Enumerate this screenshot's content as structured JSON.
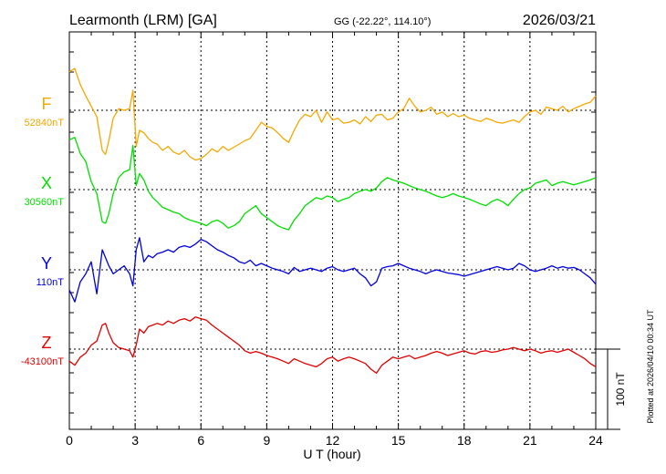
{
  "header": {
    "station": "Learmonth (LRM)  [GA]",
    "coords": "GG (-22.22°, 114.10°)",
    "date": "2026/03/21"
  },
  "footer": {
    "plotted": "Plotted at 2026/04/10 00:34 UT"
  },
  "chart_data": {
    "type": "line",
    "title": "Learmonth (LRM)  [GA]",
    "xlabel": "U T (hour)",
    "xlim": [
      0,
      24
    ],
    "xticks": [
      0,
      3,
      6,
      9,
      12,
      15,
      18,
      21,
      24
    ],
    "grid": true,
    "scale_bar": "100 nT",
    "series": [
      {
        "name": "F",
        "baseline": "52840nT",
        "color": "#f5a800",
        "offset_nt": -20,
        "x": [
          0,
          0.25,
          0.5,
          0.75,
          1,
          1.25,
          1.5,
          1.65,
          1.8,
          2,
          2.25,
          2.5,
          2.75,
          2.9,
          3.05,
          3.2,
          3.4,
          3.6,
          3.8,
          4,
          4.25,
          4.5,
          4.75,
          5,
          5.25,
          5.5,
          5.75,
          6,
          6.25,
          6.5,
          6.75,
          7,
          7.25,
          7.5,
          7.75,
          8,
          8.25,
          8.5,
          8.75,
          9,
          9.25,
          9.5,
          9.75,
          10,
          10.25,
          10.5,
          10.75,
          11,
          11.25,
          11.5,
          11.75,
          12,
          12.25,
          12.5,
          12.75,
          13,
          13.25,
          13.5,
          13.75,
          14,
          14.25,
          14.5,
          14.75,
          15,
          15.25,
          15.5,
          15.75,
          16,
          16.25,
          16.5,
          16.75,
          17,
          17.25,
          17.5,
          17.75,
          18,
          18.25,
          18.5,
          18.75,
          19,
          19.25,
          19.5,
          19.75,
          20,
          20.25,
          20.5,
          20.75,
          21,
          21.25,
          21.5,
          21.75,
          22,
          22.25,
          22.5,
          22.75,
          23,
          23.25,
          23.5,
          23.75,
          24
        ],
        "y": [
          68,
          72,
          52,
          38,
          25,
          12,
          -30,
          -35,
          -18,
          10,
          22,
          20,
          22,
          45,
          -25,
          -5,
          -8,
          -15,
          -20,
          -22,
          -30,
          -25,
          -32,
          -35,
          -30,
          -38,
          -42,
          -40,
          -35,
          -28,
          -32,
          -25,
          -30,
          -26,
          -22,
          -18,
          -15,
          -5,
          5,
          0,
          -2,
          -8,
          -15,
          -20,
          -5,
          8,
          15,
          12,
          20,
          5,
          18,
          8,
          10,
          4,
          5,
          8,
          3,
          12,
          6,
          14,
          15,
          8,
          10,
          18,
          22,
          35,
          25,
          18,
          20,
          24,
          15,
          18,
          12,
          16,
          12,
          14,
          10,
          8,
          6,
          10,
          8,
          5,
          4,
          6,
          8,
          5,
          12,
          18,
          20,
          15,
          24,
          22,
          20,
          25,
          18,
          22,
          25,
          28,
          30,
          38
        ]
      },
      {
        "name": "X",
        "baseline": "30560nT",
        "color": "#00e000",
        "offset_nt": 0,
        "x": [
          0,
          0.25,
          0.5,
          0.75,
          1,
          1.25,
          1.5,
          1.65,
          1.8,
          2,
          2.25,
          2.5,
          2.75,
          2.9,
          3.05,
          3.2,
          3.4,
          3.6,
          3.8,
          4,
          4.25,
          4.5,
          4.75,
          5,
          5.25,
          5.5,
          5.75,
          6,
          6.25,
          6.5,
          6.75,
          7,
          7.25,
          7.5,
          7.75,
          8,
          8.25,
          8.5,
          8.75,
          9,
          9.25,
          9.5,
          9.75,
          10,
          10.25,
          10.5,
          10.75,
          11,
          11.25,
          11.5,
          11.75,
          12,
          12.25,
          12.5,
          12.75,
          13,
          13.25,
          13.5,
          13.75,
          14,
          14.25,
          14.5,
          14.75,
          15,
          15.25,
          15.5,
          15.75,
          16,
          16.25,
          16.5,
          16.75,
          17,
          17.25,
          17.5,
          17.75,
          18,
          18.25,
          18.5,
          18.75,
          19,
          19.25,
          19.5,
          19.75,
          20,
          20.25,
          20.5,
          20.75,
          21,
          21.25,
          21.5,
          21.75,
          22,
          22.25,
          22.5,
          22.75,
          23,
          23.25,
          23.5,
          23.75,
          24
        ],
        "y": [
          62,
          65,
          45,
          35,
          10,
          -5,
          -40,
          -42,
          -30,
          -5,
          15,
          22,
          25,
          55,
          5,
          20,
          12,
          -2,
          -10,
          -15,
          -22,
          -25,
          -28,
          -30,
          -35,
          -38,
          -40,
          -42,
          -45,
          -40,
          -38,
          -42,
          -48,
          -45,
          -40,
          -30,
          -25,
          -20,
          -30,
          -35,
          -40,
          -45,
          -48,
          -50,
          -38,
          -30,
          -20,
          -15,
          -10,
          -12,
          -8,
          -10,
          -15,
          -12,
          -10,
          -5,
          -2,
          0,
          -2,
          2,
          10,
          15,
          12,
          10,
          8,
          5,
          2,
          0,
          -2,
          -5,
          -8,
          -10,
          -8,
          -5,
          -8,
          -10,
          -12,
          -15,
          -18,
          -20,
          -15,
          -12,
          -15,
          -20,
          -12,
          -5,
          0,
          2,
          8,
          10,
          12,
          5,
          8,
          10,
          8,
          6,
          8,
          10,
          12,
          15
        ]
      },
      {
        "name": "Y",
        "baseline": "110nT",
        "color": "#0000e0",
        "offset_nt": 0,
        "x": [
          0,
          0.25,
          0.5,
          0.75,
          1,
          1.25,
          1.5,
          1.65,
          1.8,
          2,
          2.25,
          2.5,
          2.75,
          2.9,
          3.05,
          3.2,
          3.4,
          3.6,
          3.8,
          4,
          4.25,
          4.5,
          4.75,
          5,
          5.25,
          5.5,
          5.75,
          6,
          6.25,
          6.5,
          6.75,
          7,
          7.25,
          7.5,
          7.75,
          8,
          8.25,
          8.5,
          8.75,
          9,
          9.25,
          9.5,
          9.75,
          10,
          10.25,
          10.5,
          10.75,
          11,
          11.25,
          11.5,
          11.75,
          12,
          12.25,
          12.5,
          12.75,
          13,
          13.25,
          13.5,
          13.75,
          14,
          14.25,
          14.5,
          14.75,
          15,
          15.25,
          15.5,
          15.75,
          16,
          16.25,
          16.5,
          16.75,
          17,
          17.25,
          17.5,
          17.75,
          18,
          18.25,
          18.5,
          18.75,
          19,
          19.25,
          19.5,
          19.75,
          20,
          20.25,
          20.5,
          20.75,
          21,
          21.25,
          21.5,
          21.75,
          22,
          22.25,
          22.5,
          22.75,
          23,
          23.25,
          23.5,
          23.75,
          24
        ],
        "y": [
          -25,
          -40,
          -15,
          -5,
          10,
          -30,
          25,
          15,
          5,
          -5,
          0,
          5,
          -5,
          -20,
          25,
          40,
          10,
          18,
          15,
          20,
          22,
          25,
          22,
          28,
          30,
          28,
          32,
          38,
          35,
          30,
          25,
          22,
          18,
          15,
          10,
          8,
          12,
          5,
          8,
          5,
          2,
          0,
          -2,
          -5,
          3,
          -2,
          0,
          2,
          0,
          -2,
          2,
          4,
          0,
          -2,
          0,
          2,
          -5,
          -10,
          -20,
          -15,
          2,
          4,
          5,
          8,
          5,
          2,
          0,
          -2,
          -5,
          -2,
          0,
          -2,
          -4,
          -5,
          -6,
          -8,
          -6,
          -4,
          -2,
          0,
          2,
          4,
          2,
          0,
          2,
          8,
          5,
          0,
          -2,
          0,
          2,
          5,
          2,
          4,
          2,
          3,
          0,
          -5,
          -10,
          -18
        ]
      },
      {
        "name": "Z",
        "baseline": "-43100nT",
        "color": "#e00000",
        "offset_nt": 0,
        "x": [
          0,
          0.25,
          0.5,
          0.75,
          1,
          1.25,
          1.5,
          1.65,
          1.8,
          2,
          2.25,
          2.5,
          2.75,
          2.9,
          3.05,
          3.2,
          3.4,
          3.6,
          3.8,
          4,
          4.25,
          4.5,
          4.75,
          5,
          5.25,
          5.5,
          5.75,
          6,
          6.25,
          6.5,
          6.75,
          7,
          7.25,
          7.5,
          7.75,
          8,
          8.25,
          8.5,
          8.75,
          9,
          9.25,
          9.5,
          9.75,
          10,
          10.25,
          10.5,
          10.75,
          11,
          11.25,
          11.5,
          11.75,
          12,
          12.25,
          12.5,
          12.75,
          13,
          13.25,
          13.5,
          13.75,
          14,
          14.25,
          14.5,
          14.75,
          15,
          15.25,
          15.5,
          15.75,
          16,
          16.25,
          16.5,
          16.75,
          17,
          17.25,
          17.5,
          17.75,
          18,
          18.25,
          18.5,
          18.75,
          19,
          19.25,
          19.5,
          19.75,
          20,
          20.25,
          20.5,
          20.75,
          21,
          21.25,
          21.5,
          21.75,
          22,
          22.25,
          22.5,
          22.75,
          23,
          23.25,
          23.5,
          23.75,
          24
        ],
        "y": [
          -15,
          -20,
          -10,
          -5,
          5,
          10,
          30,
          32,
          20,
          8,
          2,
          0,
          -2,
          -10,
          5,
          25,
          20,
          28,
          30,
          32,
          30,
          35,
          32,
          36,
          38,
          35,
          40,
          38,
          36,
          30,
          25,
          20,
          15,
          10,
          5,
          -2,
          -5,
          -3,
          -5,
          -8,
          -10,
          -12,
          -15,
          -18,
          -12,
          -15,
          -18,
          -20,
          -22,
          -18,
          -12,
          -10,
          -15,
          -12,
          -10,
          -12,
          -15,
          -18,
          -25,
          -30,
          -20,
          -15,
          -10,
          -12,
          -10,
          -8,
          -12,
          -10,
          -8,
          -5,
          -3,
          -5,
          -8,
          -6,
          -4,
          -2,
          -5,
          -6,
          -3,
          -2,
          -4,
          -3,
          -1,
          0,
          2,
          0,
          -2,
          0,
          -2,
          -5,
          -3,
          -2,
          -4,
          -2,
          0,
          -4,
          -8,
          -12,
          -18,
          -22
        ]
      }
    ]
  }
}
